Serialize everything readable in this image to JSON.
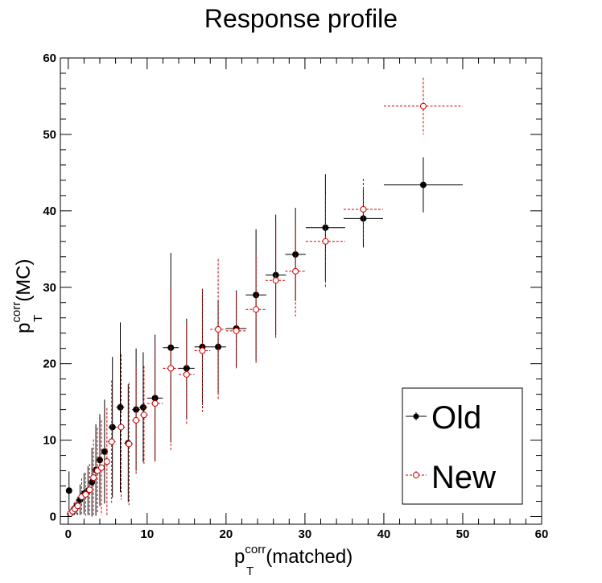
{
  "chart_data": {
    "type": "scatter",
    "title": "Response profile",
    "xlabel": {
      "base": "p",
      "sup": "corr",
      "sub": "T",
      "tail": "(matched)"
    },
    "ylabel": {
      "base": "p",
      "sup": "corr",
      "sub": "T",
      "tail": "(MC)"
    },
    "xlim": [
      -1,
      60
    ],
    "ylim": [
      -1,
      60
    ],
    "xticks": [
      "0",
      "10",
      "20",
      "30",
      "40",
      "50",
      "60"
    ],
    "yticks": [
      "0",
      "10",
      "20",
      "30",
      "40",
      "50",
      "60"
    ],
    "grid": false,
    "legend_position": "bottom-right",
    "series": [
      {
        "name": "Old",
        "color": "#000000",
        "marker": "filled-circle",
        "line_style": "solid",
        "points": [
          {
            "x": 0.1,
            "y": 3.4,
            "xerr": 0.2,
            "yerr": 2.5
          },
          {
            "x": 0.45,
            "y": 0.6,
            "xerr": 0.2,
            "yerr": 0.5
          },
          {
            "x": 0.75,
            "y": 1.0,
            "xerr": 0.2,
            "yerr": 0.8
          },
          {
            "x": 1.05,
            "y": 1.3,
            "xerr": 0.2,
            "yerr": 1.0
          },
          {
            "x": 1.5,
            "y": 2.2,
            "xerr": 0.25,
            "yerr": 2.0
          },
          {
            "x": 2.0,
            "y": 3.0,
            "xerr": 0.25,
            "yerr": 2.7
          },
          {
            "x": 2.5,
            "y": 3.4,
            "xerr": 0.25,
            "yerr": 3.2
          },
          {
            "x": 3.0,
            "y": 4.5,
            "xerr": 0.25,
            "yerr": 4.5
          },
          {
            "x": 3.5,
            "y": 6.1,
            "xerr": 0.25,
            "yerr": 6.0
          },
          {
            "x": 4.0,
            "y": 7.4,
            "xerr": 0.25,
            "yerr": 6.0
          },
          {
            "x": 4.6,
            "y": 8.5,
            "xerr": 0.3,
            "yerr": 6.8
          },
          {
            "x": 5.6,
            "y": 11.7,
            "xerr": 0.5,
            "yerr": 9.2
          },
          {
            "x": 6.6,
            "y": 14.3,
            "xerr": 0.5,
            "yerr": 11.1
          },
          {
            "x": 7.6,
            "y": 9.6,
            "xerr": 0.5,
            "yerr": 7.7
          },
          {
            "x": 8.6,
            "y": 14.0,
            "xerr": 0.5,
            "yerr": 8.0
          },
          {
            "x": 9.5,
            "y": 14.3,
            "xerr": 0.5,
            "yerr": 7.2
          },
          {
            "x": 11.0,
            "y": 15.5,
            "xerr": 1.0,
            "yerr": 8.3
          },
          {
            "x": 13.0,
            "y": 22.1,
            "xerr": 1.0,
            "yerr": 12.4
          },
          {
            "x": 15.0,
            "y": 19.4,
            "xerr": 1.0,
            "yerr": 6.5
          },
          {
            "x": 17.0,
            "y": 22.2,
            "xerr": 1.0,
            "yerr": 7.6
          },
          {
            "x": 19.0,
            "y": 22.2,
            "xerr": 1.0,
            "yerr": 6.0
          },
          {
            "x": 21.3,
            "y": 24.6,
            "xerr": 1.3,
            "yerr": 5.0
          },
          {
            "x": 23.8,
            "y": 29.0,
            "xerr": 1.3,
            "yerr": 8.6
          },
          {
            "x": 26.3,
            "y": 31.6,
            "xerr": 1.3,
            "yerr": 7.9
          },
          {
            "x": 28.8,
            "y": 34.3,
            "xerr": 1.3,
            "yerr": 6.1
          },
          {
            "x": 32.6,
            "y": 37.8,
            "xerr": 2.5,
            "yerr": 7.0
          },
          {
            "x": 37.4,
            "y": 39.0,
            "xerr": 2.5,
            "yerr": 3.8
          },
          {
            "x": 45.0,
            "y": 43.4,
            "xerr": 5.0,
            "yerr": 3.6
          }
        ]
      },
      {
        "name": "New",
        "color": "#cc0000",
        "marker": "open-circle",
        "line_style": "dashed",
        "points": [
          {
            "x": 0.25,
            "y": 0.4,
            "xerr": 0.2,
            "yerr": 0.3
          },
          {
            "x": 0.55,
            "y": 0.7,
            "xerr": 0.2,
            "yerr": 0.6
          },
          {
            "x": 0.85,
            "y": 1.0,
            "xerr": 0.2,
            "yerr": 0.9
          },
          {
            "x": 1.2,
            "y": 1.4,
            "xerr": 0.2,
            "yerr": 1.2
          },
          {
            "x": 1.7,
            "y": 2.6,
            "xerr": 0.25,
            "yerr": 2.4
          },
          {
            "x": 2.2,
            "y": 2.9,
            "xerr": 0.25,
            "yerr": 2.8
          },
          {
            "x": 2.7,
            "y": 3.5,
            "xerr": 0.25,
            "yerr": 3.4
          },
          {
            "x": 3.2,
            "y": 5.1,
            "xerr": 0.25,
            "yerr": 5.0
          },
          {
            "x": 3.7,
            "y": 6.0,
            "xerr": 0.25,
            "yerr": 5.6
          },
          {
            "x": 4.2,
            "y": 6.4,
            "xerr": 0.25,
            "yerr": 6.2
          },
          {
            "x": 4.9,
            "y": 7.2,
            "xerr": 0.3,
            "yerr": 7.0
          },
          {
            "x": 5.5,
            "y": 9.8,
            "xerr": 0.5,
            "yerr": 8.0
          },
          {
            "x": 6.7,
            "y": 11.7,
            "xerr": 0.5,
            "yerr": 9.5
          },
          {
            "x": 7.7,
            "y": 9.5,
            "xerr": 0.5,
            "yerr": 8.0
          },
          {
            "x": 8.6,
            "y": 12.6,
            "xerr": 0.5,
            "yerr": 7.0
          },
          {
            "x": 9.6,
            "y": 13.3,
            "xerr": 0.5,
            "yerr": 6.4
          },
          {
            "x": 11.0,
            "y": 14.8,
            "xerr": 1.0,
            "yerr": 7.6
          },
          {
            "x": 13.0,
            "y": 19.4,
            "xerr": 1.0,
            "yerr": 10.7
          },
          {
            "x": 15.0,
            "y": 18.6,
            "xerr": 1.0,
            "yerr": 6.5
          },
          {
            "x": 17.0,
            "y": 21.7,
            "xerr": 1.0,
            "yerr": 8.0
          },
          {
            "x": 19.0,
            "y": 24.5,
            "xerr": 1.0,
            "yerr": 9.2
          },
          {
            "x": 21.3,
            "y": 24.3,
            "xerr": 1.3,
            "yerr": 5.0
          },
          {
            "x": 23.8,
            "y": 27.1,
            "xerr": 1.3,
            "yerr": 7.2
          },
          {
            "x": 26.3,
            "y": 30.9,
            "xerr": 1.3,
            "yerr": 7.6
          },
          {
            "x": 28.8,
            "y": 32.1,
            "xerr": 1.3,
            "yerr": 5.9
          },
          {
            "x": 32.6,
            "y": 36.0,
            "xerr": 2.5,
            "yerr": 6.0
          },
          {
            "x": 37.4,
            "y": 40.2,
            "xerr": 2.5,
            "yerr": 4.0
          },
          {
            "x": 45.0,
            "y": 53.7,
            "xerr": 5.0,
            "yerr": 3.7
          }
        ]
      }
    ]
  }
}
